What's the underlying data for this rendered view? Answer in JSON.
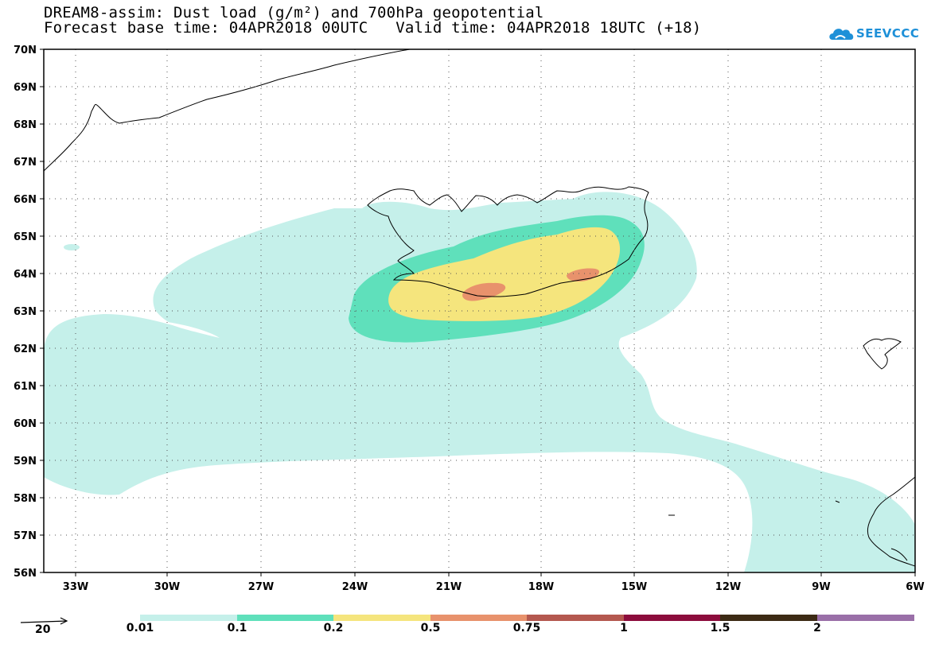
{
  "header": {
    "title_line1": "DREAM8-assim: Dust load (g/m²) and 700hPa geopotential",
    "title_line2": "Forecast base time: 04APR2018 00UTC   Valid time: 04APR2018 18UTC (+18)"
  },
  "logo": {
    "text": "SEEVCCC",
    "icon": "cloud-icon",
    "color": "#1e90d8"
  },
  "map": {
    "lat_labels": [
      "70N",
      "69N",
      "68N",
      "67N",
      "66N",
      "65N",
      "64N",
      "63N",
      "62N",
      "61N",
      "60N",
      "59N",
      "58N",
      "57N",
      "56N"
    ],
    "lon_labels": [
      "33W",
      "30W",
      "27W",
      "24W",
      "21W",
      "18W",
      "15W",
      "12W",
      "9W",
      "6W"
    ],
    "land_outline_color": "#000000"
  },
  "legend": {
    "thresholds": [
      "0.01",
      "0.1",
      "0.2",
      "0.5",
      "0.75",
      "1",
      "1.5",
      "2"
    ],
    "colors": [
      "#c5f0ea",
      "#5fe0bb",
      "#f5e57d",
      "#e8926c",
      "#b4584f",
      "#8c0c3c",
      "#3c2a14",
      "#9a6fa8"
    ],
    "vector_label": "20"
  }
}
